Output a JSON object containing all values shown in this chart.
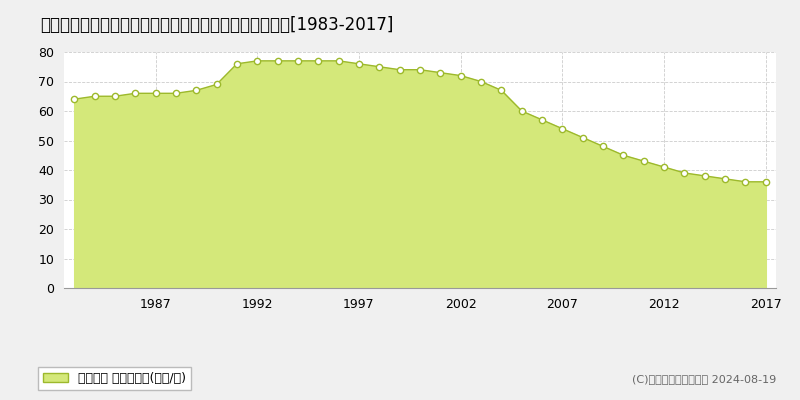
{
  "title": "徳島県徳島市伊賀町３丁目５番４　地価公示　地価推移[1983-2017]",
  "years": [
    1983,
    1984,
    1985,
    1986,
    1987,
    1988,
    1989,
    1990,
    1991,
    1992,
    1993,
    1994,
    1995,
    1996,
    1997,
    1998,
    1999,
    2000,
    2001,
    2002,
    2003,
    2004,
    2005,
    2006,
    2007,
    2008,
    2009,
    2010,
    2011,
    2012,
    2013,
    2014,
    2015,
    2016,
    2017
  ],
  "values": [
    64,
    65,
    65,
    66,
    66,
    66,
    67,
    69,
    76,
    77,
    77,
    77,
    77,
    77,
    76,
    75,
    74,
    74,
    73,
    72,
    70,
    67,
    60,
    57,
    54,
    51,
    48,
    45,
    43,
    41,
    39,
    38,
    37,
    36,
    36
  ],
  "line_color": "#9db92c",
  "fill_color": "#d4e87a",
  "fill_alpha": 1.0,
  "marker_color": "#ffffff",
  "marker_edge_color": "#9db92c",
  "bg_color": "#f0f0f0",
  "plot_bg_color": "#ffffff",
  "grid_color": "#cccccc",
  "ylim": [
    0,
    80
  ],
  "yticks": [
    0,
    10,
    20,
    30,
    40,
    50,
    60,
    70,
    80
  ],
  "xtick_years": [
    1987,
    1992,
    1997,
    2002,
    2007,
    2012,
    2017
  ],
  "legend_label": "地価公示 平均嵪単価(万円/嵪)",
  "copyright_text": "(C)土地価格ドットコム 2024-08-19",
  "title_fontsize": 12,
  "tick_fontsize": 9,
  "legend_fontsize": 9,
  "copyright_fontsize": 8
}
